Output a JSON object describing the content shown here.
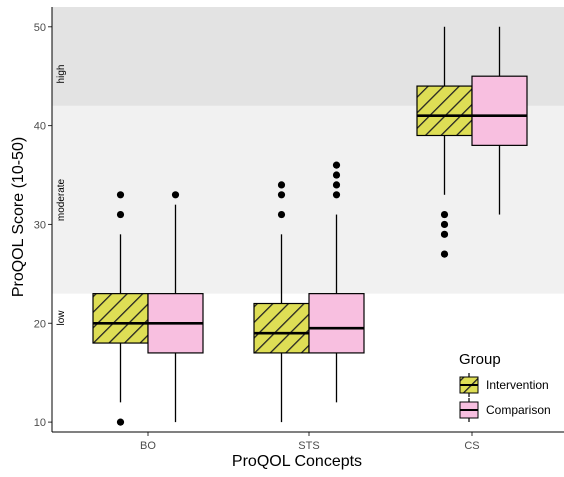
{
  "chart_data": {
    "type": "boxplot",
    "title": "",
    "xlabel": "ProQOL Concepts",
    "ylabel": "ProQOL Score (10-50)",
    "ylim": [
      9,
      52
    ],
    "yticks": [
      10,
      20,
      30,
      40,
      50
    ],
    "categories": [
      "BO",
      "STS",
      "CS"
    ],
    "bands": [
      {
        "label": "low",
        "from": 9,
        "to": 23,
        "color": "#ffffff"
      },
      {
        "label": "moderate",
        "from": 23,
        "to": 42,
        "color": "#f1f1f1"
      },
      {
        "label": "high",
        "from": 42,
        "to": 52,
        "color": "#e3e3e3"
      }
    ],
    "legend": {
      "title": "Group",
      "position": "bottom-right"
    },
    "series": [
      {
        "name": "Intervention",
        "color": "#dede55",
        "pattern": "diagonal-hatch",
        "boxes": [
          {
            "category": "BO",
            "whisker_low": 12,
            "q1": 18,
            "median": 20,
            "q3": 23,
            "whisker_high": 29,
            "outliers": [
              10,
              31,
              33
            ]
          },
          {
            "category": "STS",
            "whisker_low": 10,
            "q1": 17,
            "median": 19,
            "q3": 22,
            "whisker_high": 29,
            "outliers": [
              31,
              33,
              34
            ]
          },
          {
            "category": "CS",
            "whisker_low": 33,
            "q1": 39,
            "median": 41,
            "q3": 44,
            "whisker_high": 50,
            "outliers": [
              27,
              29,
              30,
              31
            ]
          }
        ]
      },
      {
        "name": "Comparison",
        "color": "#f8bfe0",
        "pattern": "solid",
        "boxes": [
          {
            "category": "BO",
            "whisker_low": 10,
            "q1": 17,
            "median": 20,
            "q3": 23,
            "whisker_high": 32,
            "outliers": [
              33
            ]
          },
          {
            "category": "STS",
            "whisker_low": 12,
            "q1": 17,
            "median": 19.5,
            "q3": 23,
            "whisker_high": 31,
            "outliers": [
              33,
              34,
              35,
              36
            ]
          },
          {
            "category": "CS",
            "whisker_low": 31,
            "q1": 38,
            "median": 41,
            "q3": 45,
            "whisker_high": 50,
            "outliers": []
          }
        ]
      }
    ]
  }
}
